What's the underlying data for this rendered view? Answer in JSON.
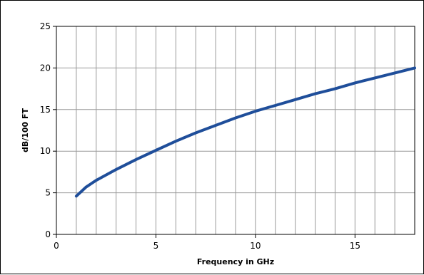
{
  "chart_data": {
    "type": "line",
    "title": "",
    "xlabel": "Frequency in GHz",
    "ylabel": "dB/100 FT",
    "xlim": [
      0,
      18
    ],
    "ylim": [
      0,
      25
    ],
    "x_ticks": [
      0,
      5,
      10,
      15
    ],
    "y_ticks": [
      0,
      5,
      10,
      15,
      20,
      25
    ],
    "x_gridlines": [
      1,
      2,
      3,
      4,
      5,
      6,
      7,
      8,
      9,
      10,
      11,
      12,
      13,
      14,
      15,
      16,
      17
    ],
    "y_gridlines": [
      5,
      10,
      15,
      20
    ],
    "grid": true,
    "legend": "none",
    "series": [
      {
        "color": "#1f4e9a",
        "x": [
          1,
          1.5,
          2,
          3,
          4,
          5,
          6,
          7,
          8,
          9,
          10,
          11,
          12,
          13,
          14,
          15,
          16,
          17,
          18
        ],
        "y": [
          4.6,
          5.7,
          6.5,
          7.8,
          9.0,
          10.1,
          11.2,
          12.2,
          13.1,
          14.0,
          14.8,
          15.5,
          16.2,
          16.9,
          17.5,
          18.2,
          18.8,
          19.4,
          20.0
        ]
      }
    ]
  }
}
